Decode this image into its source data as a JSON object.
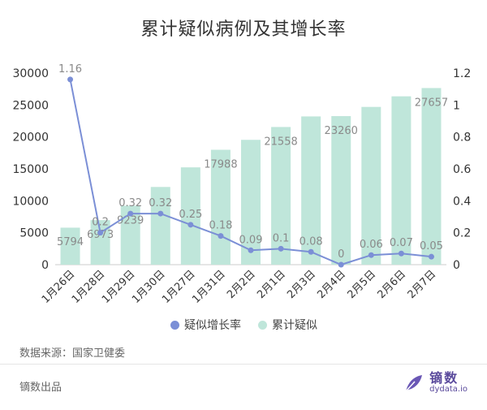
{
  "title": "累计疑似病例及其增长率",
  "chart_data": {
    "type": "bar",
    "categories": [
      "1月26日",
      "1月28日",
      "1月29日",
      "1月30日",
      "1月27日",
      "1月31日",
      "2月2日",
      "2月1日",
      "2月3日",
      "2月4日",
      "2月5日",
      "2月6日",
      "2月7日"
    ],
    "series": [
      {
        "name": "累计疑似",
        "type": "bar",
        "axis": "left",
        "values": [
          5794,
          6973,
          9239,
          12167,
          15238,
          17988,
          19544,
          21558,
          23214,
          23260,
          24702,
          26359,
          27657
        ],
        "data_labels": [
          "5794",
          "6973",
          "9239",
          "",
          "",
          "17988",
          "",
          "21558",
          "",
          "23260",
          "",
          "",
          "27657"
        ]
      },
      {
        "name": "疑似增长率",
        "type": "line",
        "axis": "right",
        "values": [
          1.16,
          0.2,
          0.32,
          0.32,
          0.25,
          0.18,
          0.09,
          0.1,
          0.08,
          0,
          0.06,
          0.07,
          0.05
        ],
        "data_labels": [
          "1.16",
          "0.2",
          "0.32",
          "0.32",
          "0.25",
          "0.18",
          "0.09",
          "0.1",
          "0.08",
          "0",
          "0.06",
          "0.07",
          "0.05"
        ]
      }
    ],
    "left_axis": {
      "ylim": [
        0,
        30000
      ],
      "ticks": [
        "0",
        "5000",
        "10000",
        "15000",
        "20000",
        "25000",
        "30000"
      ]
    },
    "right_axis": {
      "ylim": [
        0,
        1.2
      ],
      "ticks": [
        "0",
        "0.2",
        "0.4",
        "0.6",
        "0.8",
        "1",
        "1.2"
      ]
    },
    "legend_position": "bottom",
    "colors": {
      "bar": "#bfe6da",
      "line": "#7b8fd6",
      "label": "#8a8a8a",
      "axis_text": "#333333"
    }
  },
  "legend": {
    "line_label": "疑似增长率",
    "bar_label": "累计疑似"
  },
  "source": "数据来源：国家卫健委",
  "publisher": "镝数出品",
  "logo": {
    "cn": "镝数",
    "en": "dydata.io"
  }
}
